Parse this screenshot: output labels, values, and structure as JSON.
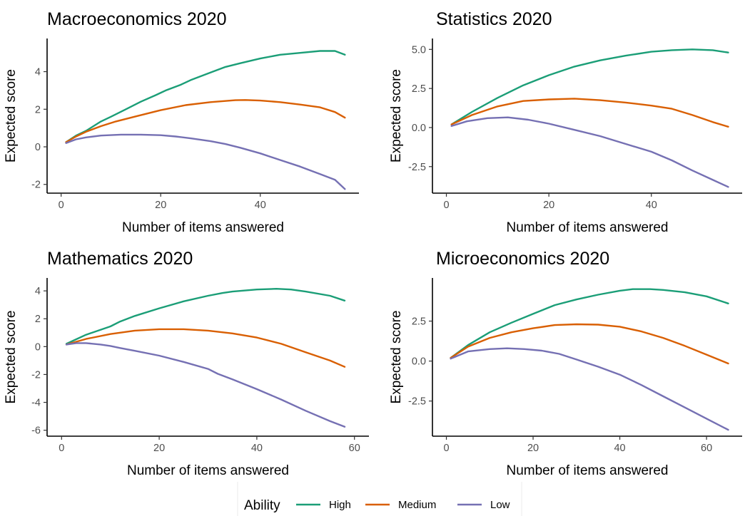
{
  "colors": {
    "High": "#1b9e77",
    "Medium": "#d95f02",
    "Low": "#7570b3"
  },
  "legend": {
    "title": "Ability",
    "entries": [
      "High",
      "Medium",
      "Low"
    ],
    "placement": "bottom"
  },
  "chart_data": [
    {
      "type": "line",
      "title": "Macroeconomics 2020",
      "xlabel": "Number of items answered",
      "ylabel": "Expected score",
      "xlim": [
        0,
        57
      ],
      "ylim": [
        -2.3,
        5.6
      ],
      "xticks": [
        0,
        20,
        40
      ],
      "yticks": [
        -2,
        0,
        2,
        4
      ],
      "grid": false,
      "series": [
        {
          "name": "High",
          "x": [
            1,
            3,
            5,
            8,
            10,
            13,
            16,
            19,
            21,
            24,
            26,
            30,
            33,
            36,
            40,
            44,
            48,
            52,
            55,
            57
          ],
          "y": [
            0.25,
            0.6,
            0.85,
            1.35,
            1.6,
            2.0,
            2.4,
            2.75,
            3.0,
            3.3,
            3.55,
            3.95,
            4.25,
            4.45,
            4.7,
            4.9,
            5.0,
            5.1,
            5.1,
            4.9
          ]
        },
        {
          "name": "Medium",
          "x": [
            1,
            3,
            5,
            8,
            11,
            15,
            20,
            25,
            30,
            35,
            37,
            40,
            44,
            48,
            52,
            55,
            57
          ],
          "y": [
            0.25,
            0.55,
            0.8,
            1.1,
            1.35,
            1.62,
            1.95,
            2.22,
            2.38,
            2.48,
            2.49,
            2.46,
            2.38,
            2.25,
            2.1,
            1.85,
            1.55
          ]
        },
        {
          "name": "Low",
          "x": [
            1,
            3,
            5,
            8,
            12,
            16,
            20,
            23,
            26,
            30,
            33,
            36,
            40,
            44,
            48,
            52,
            55,
            57
          ],
          "y": [
            0.2,
            0.4,
            0.5,
            0.6,
            0.65,
            0.65,
            0.62,
            0.55,
            0.45,
            0.3,
            0.15,
            -0.05,
            -0.35,
            -0.7,
            -1.05,
            -1.45,
            -1.75,
            -2.25
          ]
        }
      ]
    },
    {
      "type": "line",
      "title": "Statistics 2020",
      "xlabel": "Number of items answered",
      "ylabel": "Expected score",
      "xlim": [
        0,
        55
      ],
      "ylim": [
        -4.0,
        5.5
      ],
      "xticks": [
        0,
        20,
        40
      ],
      "yticks": [
        -2.5,
        0.0,
        2.5,
        5.0
      ],
      "ytick_labels": [
        "-2.5",
        "0.0",
        "2.5",
        "5.0"
      ],
      "grid": false,
      "series": [
        {
          "name": "High",
          "x": [
            1,
            5,
            10,
            15,
            20,
            25,
            30,
            35,
            40,
            44,
            48,
            52,
            55
          ],
          "y": [
            0.2,
            1.0,
            1.9,
            2.7,
            3.35,
            3.9,
            4.3,
            4.6,
            4.85,
            4.95,
            5.0,
            4.95,
            4.8
          ]
        },
        {
          "name": "Medium",
          "x": [
            1,
            5,
            10,
            15,
            20,
            25,
            30,
            35,
            40,
            44,
            48,
            52,
            55
          ],
          "y": [
            0.2,
            0.8,
            1.35,
            1.7,
            1.8,
            1.85,
            1.75,
            1.6,
            1.4,
            1.2,
            0.8,
            0.35,
            0.05
          ]
        },
        {
          "name": "Low",
          "x": [
            1,
            4,
            8,
            12,
            16,
            20,
            25,
            30,
            35,
            40,
            44,
            48,
            52,
            55
          ],
          "y": [
            0.1,
            0.4,
            0.6,
            0.65,
            0.5,
            0.25,
            -0.15,
            -0.55,
            -1.05,
            -1.55,
            -2.1,
            -2.75,
            -3.35,
            -3.8
          ]
        }
      ]
    },
    {
      "type": "line",
      "title": "Mathematics 2020",
      "xlabel": "Number of items answered",
      "ylabel": "Expected score",
      "xlim": [
        0,
        60
      ],
      "ylim": [
        -6.2,
        4.7
      ],
      "xticks": [
        0,
        20,
        40,
        60
      ],
      "yticks": [
        -6,
        -4,
        -2,
        0,
        2,
        4
      ],
      "grid": false,
      "series": [
        {
          "name": "High",
          "x": [
            1,
            5,
            10,
            12,
            15,
            20,
            25,
            30,
            33,
            35,
            40,
            44,
            47,
            50,
            55,
            58
          ],
          "y": [
            0.2,
            0.85,
            1.45,
            1.8,
            2.2,
            2.75,
            3.25,
            3.65,
            3.85,
            3.95,
            4.1,
            4.15,
            4.1,
            3.95,
            3.65,
            3.3
          ]
        },
        {
          "name": "Medium",
          "x": [
            1,
            5,
            10,
            15,
            20,
            25,
            30,
            35,
            40,
            45,
            50,
            55,
            58
          ],
          "y": [
            0.15,
            0.55,
            0.9,
            1.15,
            1.25,
            1.25,
            1.15,
            0.95,
            0.65,
            0.2,
            -0.4,
            -1.0,
            -1.45
          ]
        },
        {
          "name": "Low",
          "x": [
            1,
            3,
            5,
            8,
            10,
            12,
            15,
            20,
            25,
            30,
            32,
            35,
            40,
            45,
            50,
            55,
            58
          ],
          "y": [
            0.15,
            0.25,
            0.25,
            0.15,
            0.05,
            -0.1,
            -0.3,
            -0.65,
            -1.1,
            -1.6,
            -1.95,
            -2.35,
            -3.05,
            -3.8,
            -4.6,
            -5.35,
            -5.75
          ]
        }
      ]
    },
    {
      "type": "line",
      "title": "Microeconomics 2020",
      "xlabel": "Number of items answered",
      "ylabel": "Expected score",
      "xlim": [
        0,
        65
      ],
      "ylim": [
        -4.5,
        5.0
      ],
      "xticks": [
        0,
        20,
        40,
        60
      ],
      "yticks": [
        -2.5,
        0.0,
        2.5
      ],
      "ytick_labels": [
        "-2.5",
        "0.0",
        "2.5"
      ],
      "grid": false,
      "series": [
        {
          "name": "High",
          "x": [
            1,
            5,
            10,
            15,
            20,
            25,
            30,
            35,
            40,
            43,
            47,
            50,
            55,
            60,
            65
          ],
          "y": [
            0.2,
            1.0,
            1.8,
            2.4,
            2.95,
            3.5,
            3.85,
            4.15,
            4.4,
            4.5,
            4.5,
            4.45,
            4.3,
            4.05,
            3.6
          ]
        },
        {
          "name": "Medium",
          "x": [
            1,
            5,
            10,
            15,
            20,
            25,
            30,
            35,
            40,
            45,
            50,
            55,
            60,
            65
          ],
          "y": [
            0.2,
            0.9,
            1.45,
            1.8,
            2.05,
            2.25,
            2.3,
            2.28,
            2.15,
            1.85,
            1.45,
            0.95,
            0.4,
            -0.15
          ]
        },
        {
          "name": "Low",
          "x": [
            1,
            5,
            10,
            14,
            18,
            22,
            26,
            30,
            35,
            40,
            45,
            50,
            55,
            60,
            65
          ],
          "y": [
            0.15,
            0.6,
            0.75,
            0.8,
            0.75,
            0.65,
            0.45,
            0.1,
            -0.35,
            -0.85,
            -1.5,
            -2.2,
            -2.9,
            -3.6,
            -4.3
          ]
        }
      ]
    }
  ]
}
